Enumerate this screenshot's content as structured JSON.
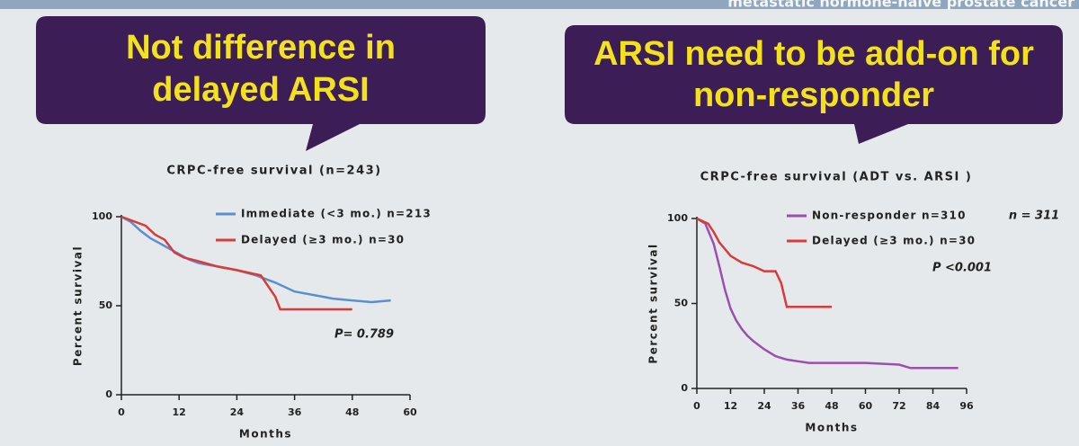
{
  "header": "metastatic hormone-naive prostate cancer",
  "chart_data": [
    {
      "type": "line",
      "callout": [
        "Not difference in",
        "delayed ARSI"
      ],
      "title": "CRPC-free survival (n=243)",
      "xlabel": "Months",
      "ylabel": "Percent survival",
      "xlim": [
        0,
        60
      ],
      "xticks": [
        0,
        12,
        24,
        36,
        48,
        60
      ],
      "ylim": [
        0,
        100
      ],
      "yticks": [
        0,
        50,
        100
      ],
      "series": [
        {
          "name": "Immediate (<3 mo.) n=213",
          "color": "#5b8fd0",
          "x": [
            0,
            2,
            4,
            6,
            8,
            10,
            12,
            14,
            16,
            18,
            20,
            24,
            28,
            32,
            36,
            40,
            44,
            48,
            52,
            56
          ],
          "values": [
            100,
            97,
            92,
            88,
            85,
            82,
            79,
            76,
            74,
            73,
            72,
            70,
            67,
            63,
            58,
            56,
            54,
            53,
            52,
            53
          ]
        },
        {
          "name": "Delayed (≥3 mo.) n=30",
          "color": "#d93a3a",
          "x": [
            0,
            5,
            7,
            9,
            11,
            13,
            16,
            20,
            24,
            29,
            32,
            33,
            48
          ],
          "values": [
            100,
            95,
            90,
            87,
            80,
            77,
            75,
            72,
            70,
            67,
            55,
            48,
            48
          ]
        }
      ],
      "annotations": [
        "P= 0.789"
      ]
    },
    {
      "type": "line",
      "callout": [
        "ARSI need to be add-on for",
        "non-responder"
      ],
      "title": "CRPC-free survival (ADT vs. ARSI )",
      "xlabel": "Months",
      "ylabel": "Percent survival",
      "xlim": [
        0,
        96
      ],
      "xticks": [
        0,
        12,
        24,
        36,
        48,
        60,
        72,
        84,
        96
      ],
      "ylim": [
        0,
        100
      ],
      "yticks": [
        0,
        50,
        100
      ],
      "series": [
        {
          "name": "Non-responder n=310",
          "color": "#9b4fae",
          "x": [
            0,
            3,
            6,
            8,
            10,
            12,
            14,
            16,
            18,
            20,
            24,
            28,
            32,
            36,
            40,
            48,
            60,
            72,
            76,
            84,
            90,
            93
          ],
          "values": [
            100,
            97,
            85,
            72,
            58,
            47,
            40,
            35,
            31,
            28,
            23,
            19,
            17,
            16,
            15,
            15,
            15,
            14,
            12,
            12,
            12,
            12
          ]
        },
        {
          "name": "Delayed (≥3 mo.) n=30",
          "color": "#d93a3a",
          "x": [
            0,
            4,
            6,
            8,
            10,
            12,
            16,
            20,
            24,
            28,
            30,
            32,
            48
          ],
          "values": [
            100,
            97,
            92,
            86,
            82,
            78,
            74,
            72,
            69,
            69,
            62,
            48,
            48
          ]
        }
      ],
      "annotations": [
        "n = 311",
        "P <0.001"
      ]
    }
  ]
}
